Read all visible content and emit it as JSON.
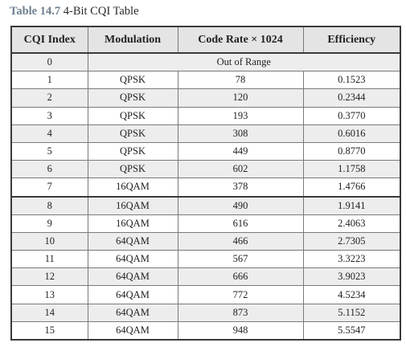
{
  "caption": {
    "number": "Table 14.7",
    "title": "4-Bit CQI Table"
  },
  "table": {
    "headers": [
      "CQI Index",
      "Modulation",
      "Code Rate × 1024",
      "Efficiency"
    ],
    "merged_row": {
      "index": "0",
      "text": "Out of Range"
    },
    "rows": [
      {
        "index": "1",
        "modulation": "QPSK",
        "code_rate": "78",
        "efficiency": "0.1523"
      },
      {
        "index": "2",
        "modulation": "QPSK",
        "code_rate": "120",
        "efficiency": "0.2344"
      },
      {
        "index": "3",
        "modulation": "QPSK",
        "code_rate": "193",
        "efficiency": "0.3770"
      },
      {
        "index": "4",
        "modulation": "QPSK",
        "code_rate": "308",
        "efficiency": "0.6016"
      },
      {
        "index": "5",
        "modulation": "QPSK",
        "code_rate": "449",
        "efficiency": "0.8770"
      },
      {
        "index": "6",
        "modulation": "QPSK",
        "code_rate": "602",
        "efficiency": "1.1758"
      },
      {
        "index": "7",
        "modulation": "16QAM",
        "code_rate": "378",
        "efficiency": "1.4766"
      },
      {
        "index": "8",
        "modulation": "16QAM",
        "code_rate": "490",
        "efficiency": "1.9141"
      },
      {
        "index": "9",
        "modulation": "16QAM",
        "code_rate": "616",
        "efficiency": "2.4063"
      },
      {
        "index": "10",
        "modulation": "64QAM",
        "code_rate": "466",
        "efficiency": "2.7305"
      },
      {
        "index": "11",
        "modulation": "64QAM",
        "code_rate": "567",
        "efficiency": "3.3223"
      },
      {
        "index": "12",
        "modulation": "64QAM",
        "code_rate": "666",
        "efficiency": "3.9023"
      },
      {
        "index": "13",
        "modulation": "64QAM",
        "code_rate": "772",
        "efficiency": "4.5234"
      },
      {
        "index": "14",
        "modulation": "64QAM",
        "code_rate": "873",
        "efficiency": "5.1152"
      },
      {
        "index": "15",
        "modulation": "64QAM",
        "code_rate": "948",
        "efficiency": "5.5547"
      }
    ]
  }
}
